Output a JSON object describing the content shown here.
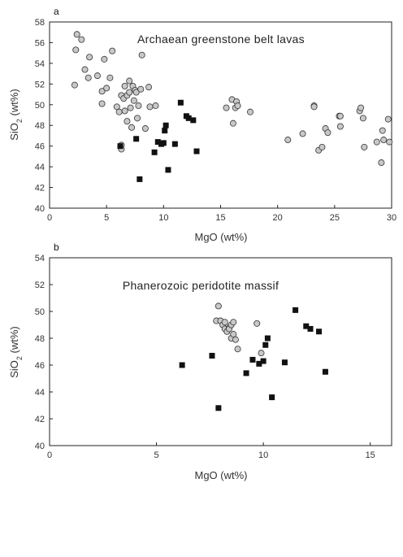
{
  "chart_data": [
    {
      "panel_label": "a",
      "type": "scatter",
      "title": "Archaean greenstone belt lavas",
      "xlabel": "MgO (wt%)",
      "ylabel": "SiO2 (wt%)",
      "xlim": [
        0,
        30
      ],
      "ylim": [
        40,
        58
      ],
      "xticks": [
        0,
        5,
        10,
        15,
        20,
        25,
        30
      ],
      "yticks": [
        40,
        42,
        44,
        46,
        48,
        50,
        52,
        54,
        56,
        58
      ],
      "grid": false,
      "series": [
        {
          "marker": "circle",
          "fill": "#c8c8c8",
          "points": [
            [
              2.2,
              51.9
            ],
            [
              2.3,
              55.3
            ],
            [
              2.4,
              56.8
            ],
            [
              2.8,
              56.3
            ],
            [
              3.1,
              53.4
            ],
            [
              3.4,
              52.6
            ],
            [
              3.5,
              54.6
            ],
            [
              4.2,
              52.8
            ],
            [
              4.6,
              51.3
            ],
            [
              4.6,
              50.1
            ],
            [
              4.8,
              54.4
            ],
            [
              5.0,
              51.6
            ],
            [
              5.3,
              52.6
            ],
            [
              5.5,
              55.2
            ],
            [
              5.9,
              49.8
            ],
            [
              6.1,
              49.3
            ],
            [
              6.3,
              50.9
            ],
            [
              6.3,
              46.1
            ],
            [
              6.3,
              45.7
            ],
            [
              6.5,
              50.6
            ],
            [
              6.6,
              49.4
            ],
            [
              6.6,
              51.8
            ],
            [
              6.8,
              50.9
            ],
            [
              6.8,
              48.4
            ],
            [
              7.0,
              52.3
            ],
            [
              7.0,
              51.2
            ],
            [
              7.1,
              49.7
            ],
            [
              7.2,
              47.8
            ],
            [
              7.3,
              51.8
            ],
            [
              7.4,
              50.4
            ],
            [
              7.5,
              51.4
            ],
            [
              7.6,
              51.2
            ],
            [
              7.7,
              48.7
            ],
            [
              7.8,
              49.9
            ],
            [
              8.0,
              51.5
            ],
            [
              8.1,
              54.8
            ],
            [
              8.4,
              47.7
            ],
            [
              8.7,
              51.7
            ],
            [
              8.8,
              49.8
            ],
            [
              9.3,
              49.9
            ],
            [
              15.5,
              49.7
            ],
            [
              16.0,
              50.5
            ],
            [
              16.1,
              48.2
            ],
            [
              16.3,
              49.7
            ],
            [
              16.4,
              50.3
            ],
            [
              16.5,
              49.9
            ],
            [
              17.6,
              49.3
            ],
            [
              20.9,
              46.6
            ],
            [
              22.2,
              47.2
            ],
            [
              23.2,
              49.9
            ],
            [
              23.2,
              49.8
            ],
            [
              23.6,
              45.6
            ],
            [
              23.9,
              45.9
            ],
            [
              24.2,
              47.7
            ],
            [
              24.4,
              47.3
            ],
            [
              25.4,
              48.9
            ],
            [
              25.5,
              47.9
            ],
            [
              25.5,
              48.9
            ],
            [
              27.2,
              49.4
            ],
            [
              27.3,
              49.7
            ],
            [
              27.5,
              48.7
            ],
            [
              27.6,
              45.9
            ],
            [
              28.7,
              46.4
            ],
            [
              29.1,
              44.4
            ],
            [
              29.2,
              47.5
            ],
            [
              29.3,
              46.6
            ],
            [
              29.7,
              48.6
            ],
            [
              29.8,
              46.4
            ]
          ]
        },
        {
          "marker": "square",
          "fill": "#111111",
          "points": [
            [
              6.2,
              46.0
            ],
            [
              7.6,
              46.7
            ],
            [
              7.9,
              42.8
            ],
            [
              9.2,
              45.4
            ],
            [
              9.5,
              46.4
            ],
            [
              9.8,
              46.2
            ],
            [
              10.0,
              46.3
            ],
            [
              10.1,
              47.5
            ],
            [
              10.2,
              48.0
            ],
            [
              10.4,
              43.7
            ],
            [
              11.0,
              46.2
            ],
            [
              11.5,
              50.2
            ],
            [
              12.0,
              48.9
            ],
            [
              12.2,
              48.7
            ],
            [
              12.6,
              48.5
            ],
            [
              12.9,
              45.5
            ]
          ]
        }
      ]
    },
    {
      "panel_label": "b",
      "type": "scatter",
      "title": "Phanerozoic peridotite massif",
      "xlabel": "MgO (wt%)",
      "ylabel": "SiO2 (wt%)",
      "xlim": [
        0,
        16
      ],
      "ylim": [
        40,
        54
      ],
      "xticks": [
        0,
        5,
        10,
        15
      ],
      "yticks": [
        40,
        42,
        44,
        46,
        48,
        50,
        52,
        54
      ],
      "grid": false,
      "series": [
        {
          "marker": "circle",
          "fill": "#c8c8c8",
          "points": [
            [
              7.8,
              49.3
            ],
            [
              7.9,
              50.4
            ],
            [
              8.0,
              49.3
            ],
            [
              8.1,
              49.0
            ],
            [
              8.2,
              48.7
            ],
            [
              8.2,
              49.2
            ],
            [
              8.3,
              48.5
            ],
            [
              8.4,
              48.8
            ],
            [
              8.4,
              48.7
            ],
            [
              8.5,
              49.0
            ],
            [
              8.5,
              48.0
            ],
            [
              8.6,
              48.3
            ],
            [
              8.6,
              49.2
            ],
            [
              8.7,
              47.9
            ],
            [
              8.8,
              47.2
            ],
            [
              9.7,
              49.1
            ],
            [
              9.9,
              46.9
            ]
          ]
        },
        {
          "marker": "square",
          "fill": "#111111",
          "points": [
            [
              6.2,
              46.0
            ],
            [
              7.6,
              46.7
            ],
            [
              7.9,
              42.8
            ],
            [
              9.2,
              45.4
            ],
            [
              9.5,
              46.4
            ],
            [
              9.8,
              46.1
            ],
            [
              10.0,
              46.3
            ],
            [
              10.1,
              47.5
            ],
            [
              10.2,
              48.0
            ],
            [
              10.4,
              43.6
            ],
            [
              11.0,
              46.2
            ],
            [
              11.5,
              50.1
            ],
            [
              12.0,
              48.9
            ],
            [
              12.2,
              48.7
            ],
            [
              12.6,
              48.5
            ],
            [
              12.9,
              45.5
            ]
          ]
        }
      ]
    }
  ]
}
